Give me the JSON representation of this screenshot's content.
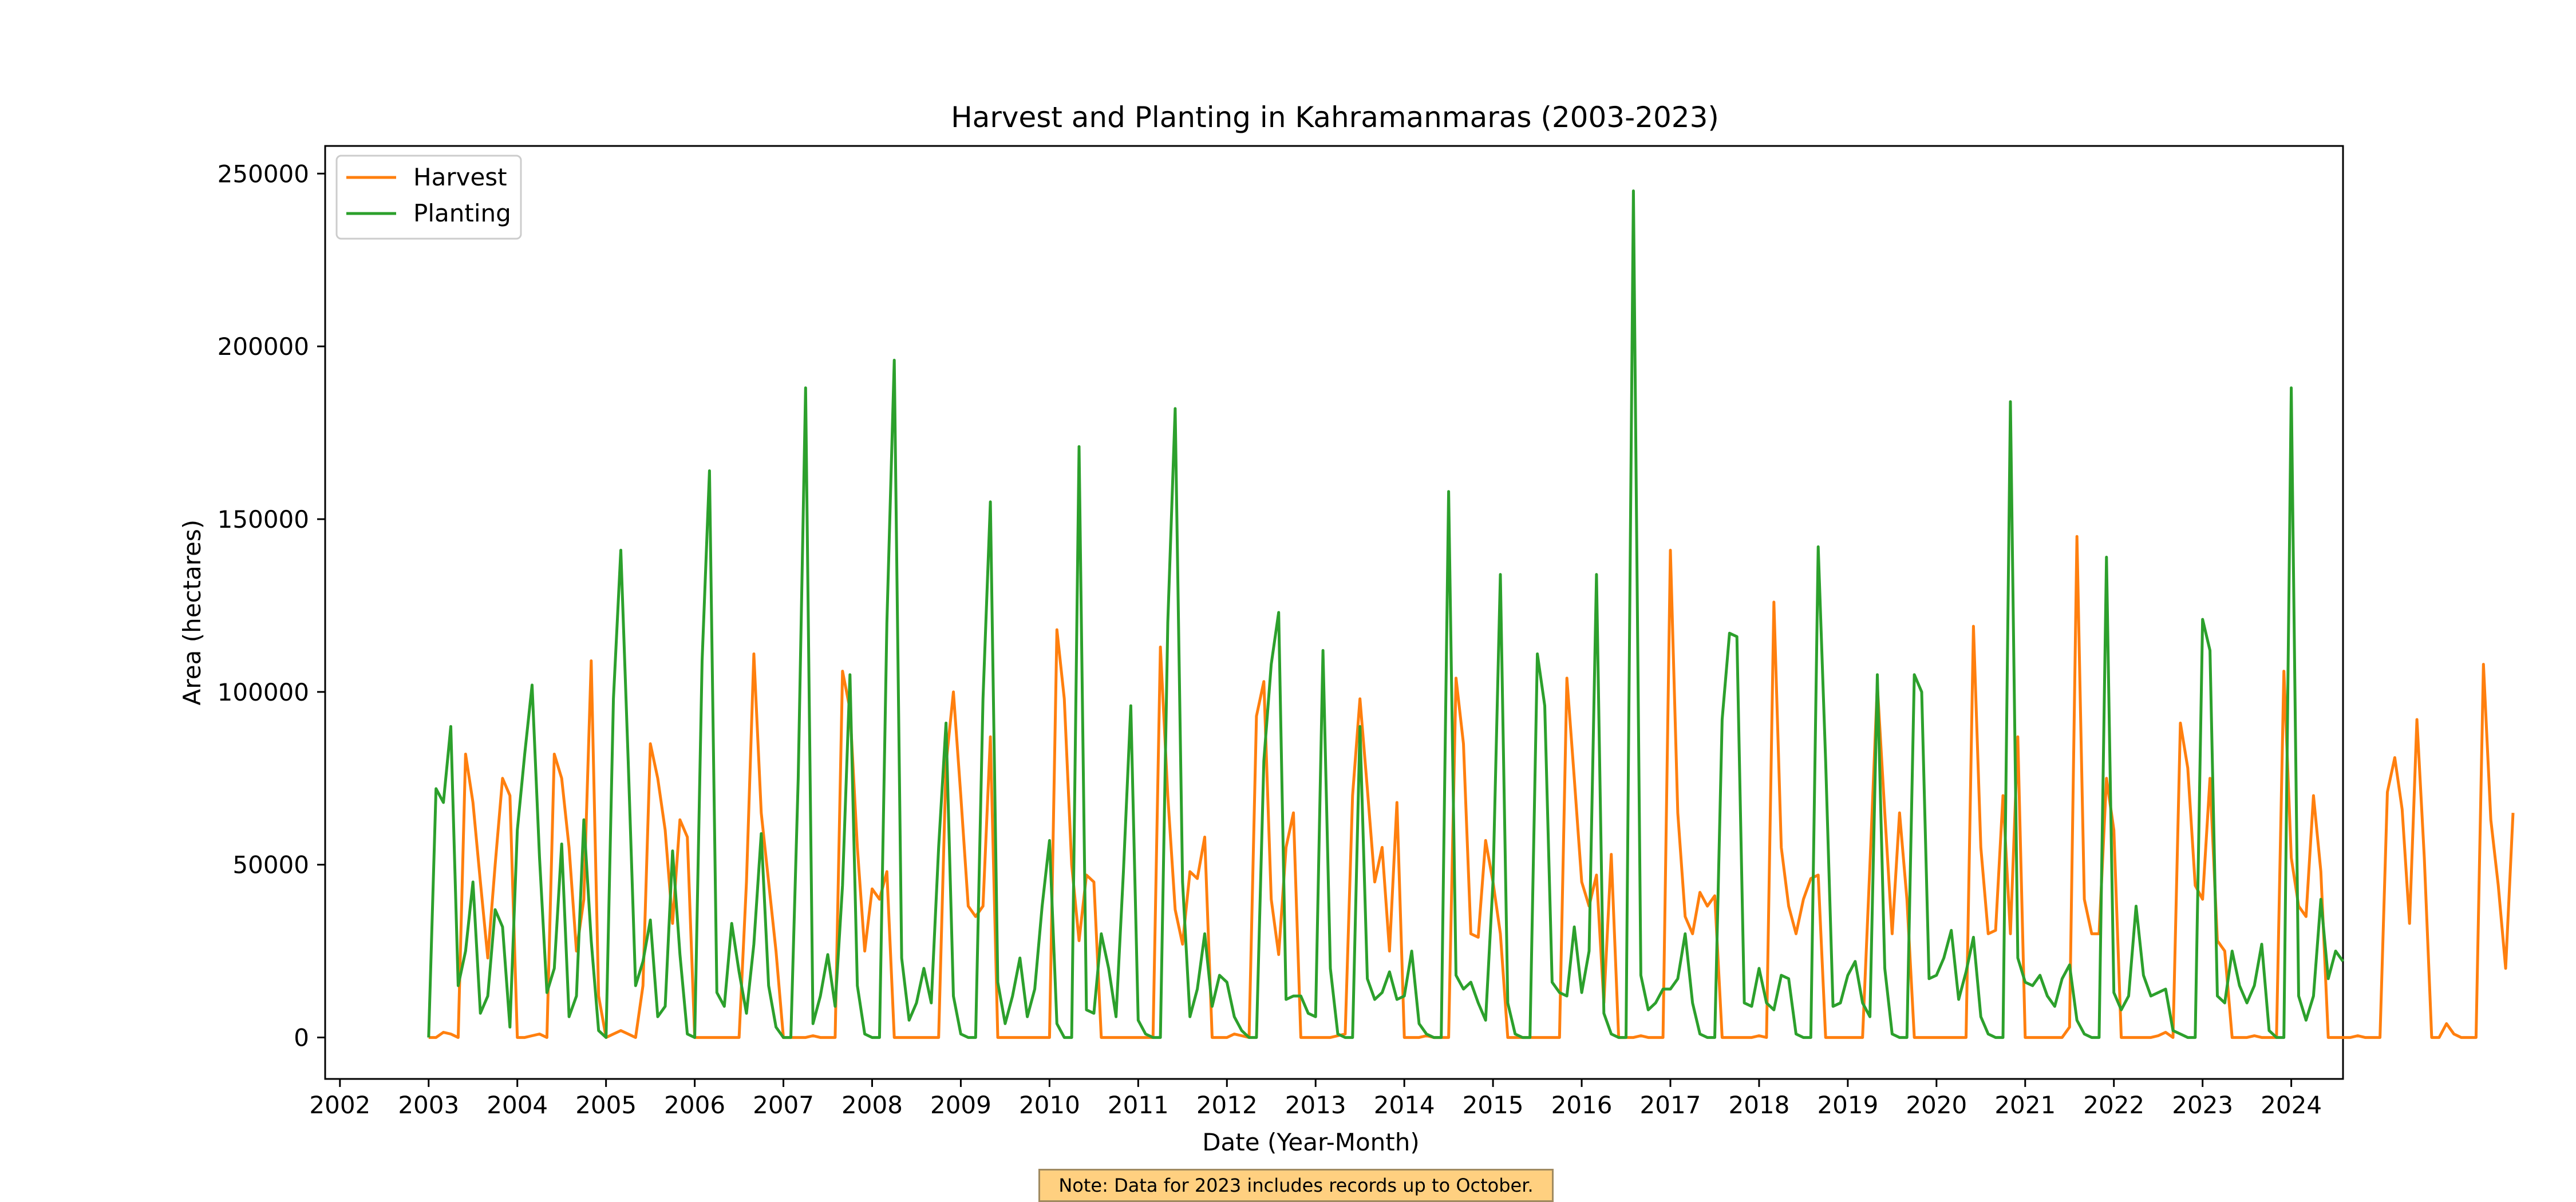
{
  "chart_data": {
    "type": "line",
    "title": "Harvest and Planting in Kahramanmaras (2003-2023)",
    "xlabel": "Date (Year-Month)",
    "ylabel": "Area (hectares)",
    "x_ticks": [
      "2002",
      "2003",
      "2004",
      "2005",
      "2006",
      "2007",
      "2008",
      "2009",
      "2010",
      "2011",
      "2012",
      "2013",
      "2014",
      "2015",
      "2016",
      "2017",
      "2018",
      "2019",
      "2020",
      "2021",
      "2022",
      "2023",
      "2024"
    ],
    "y_ticks": [
      "0",
      "50000",
      "100000",
      "150000",
      "200000",
      "250000"
    ],
    "xlim": [
      "2001-11",
      "2024-08"
    ],
    "ylim": [
      -12000,
      258000
    ],
    "grid": false,
    "legend_position": "top-left",
    "series": [
      {
        "name": "Harvest",
        "color": "#ff7f0e",
        "start": "2003-01",
        "values": [
          0,
          0,
          1500,
          1000,
          0,
          82000,
          68000,
          45000,
          23000,
          50000,
          75000,
          70000,
          0,
          0,
          500,
          1000,
          0,
          82000,
          75000,
          55000,
          25000,
          40000,
          109000,
          12000,
          0,
          1000,
          2000,
          1000,
          0,
          15000,
          85000,
          75000,
          60000,
          33000,
          63000,
          58000,
          0,
          0,
          0,
          0,
          0,
          0,
          0,
          45000,
          111000,
          65000,
          45000,
          25000,
          0,
          0,
          0,
          0,
          500,
          0,
          0,
          0,
          106000,
          95000,
          55000,
          25000,
          43000,
          40000,
          48000,
          0,
          0,
          0,
          0,
          0,
          0,
          0,
          79000,
          100000,
          70000,
          38000,
          35000,
          38000,
          87000,
          0,
          0,
          0,
          0,
          0,
          0,
          0,
          0,
          118000,
          98000,
          50000,
          28000,
          47000,
          45000,
          0,
          0,
          0,
          0,
          0,
          0,
          0,
          0,
          113000,
          70000,
          37000,
          27000,
          48000,
          46000,
          58000,
          0,
          0,
          0,
          1000,
          500,
          0,
          93000,
          103000,
          40000,
          24000,
          55000,
          65000,
          0,
          0,
          0,
          0,
          0,
          500,
          1000,
          70000,
          98000,
          72000,
          45000,
          55000,
          25000,
          68000,
          0,
          0,
          0,
          500,
          0,
          0,
          0,
          104000,
          85000,
          30000,
          29000,
          57000,
          45000,
          30000,
          0,
          0,
          0,
          0,
          0,
          0,
          0,
          0,
          104000,
          75000,
          45000,
          38000,
          47000,
          10000,
          53000,
          0,
          0,
          0,
          500,
          0,
          0,
          0,
          141000,
          65000,
          35000,
          30000,
          42000,
          38000,
          41000,
          0,
          0,
          0,
          0,
          0,
          500,
          0,
          126000,
          55000,
          38000,
          30000,
          40000,
          46000,
          47000,
          0,
          0,
          0,
          0,
          0,
          0,
          50000,
          102000,
          65000,
          30000,
          65000,
          40000,
          0,
          0,
          0,
          0,
          0,
          0,
          0,
          0,
          119000,
          55000,
          30000,
          31000,
          70000,
          30000,
          87000,
          0,
          0,
          0,
          0,
          0,
          0,
          3000,
          145000,
          40000,
          30000,
          30000,
          75000,
          60000,
          0,
          0,
          0,
          0,
          0,
          500,
          1500,
          0,
          91000,
          78000,
          44000,
          40000,
          75000,
          28000,
          25000,
          0,
          0,
          0,
          500,
          0,
          0,
          0,
          106000,
          52000,
          38000,
          35000,
          70000,
          48000,
          0,
          0,
          0,
          0,
          500,
          0,
          0,
          0,
          71000,
          81000,
          66000,
          33000,
          92000,
          52000,
          0,
          0,
          4000,
          1000,
          0,
          0,
          0,
          108000,
          63000,
          44000,
          20000,
          65000
        ]
      },
      {
        "name": "Planting",
        "color": "#2ca02c",
        "start": "2003-01",
        "values": [
          0,
          72000,
          68000,
          90000,
          15000,
          25000,
          45000,
          7000,
          12000,
          37000,
          32000,
          3000,
          60000,
          82000,
          102000,
          52000,
          13000,
          20000,
          56000,
          6000,
          12000,
          63000,
          28000,
          2000,
          0,
          98000,
          141000,
          80000,
          15000,
          22000,
          34000,
          6000,
          9000,
          54000,
          24000,
          1000,
          0,
          109000,
          164000,
          13000,
          9000,
          33000,
          19000,
          7000,
          27000,
          59000,
          15000,
          3000,
          0,
          0,
          75000,
          188000,
          4000,
          12000,
          24000,
          9000,
          44000,
          105000,
          15000,
          1000,
          0,
          0,
          120000,
          196000,
          23000,
          5000,
          10000,
          20000,
          10000,
          55000,
          91000,
          12000,
          1000,
          0,
          0,
          98000,
          155000,
          16000,
          4000,
          12000,
          23000,
          6000,
          14000,
          38000,
          57000,
          4000,
          0,
          0,
          171000,
          8000,
          7000,
          30000,
          20000,
          6000,
          48000,
          96000,
          5000,
          1000,
          0,
          0,
          120000,
          182000,
          45000,
          6000,
          14000,
          30000,
          9000,
          18000,
          16000,
          6000,
          2000,
          0,
          0,
          80000,
          108000,
          123000,
          11000,
          12000,
          12000,
          7000,
          6000,
          112000,
          20000,
          1000,
          0,
          0,
          90000,
          17000,
          11000,
          13000,
          19000,
          11000,
          12000,
          25000,
          4000,
          1000,
          0,
          0,
          158000,
          18000,
          14000,
          16000,
          10000,
          5000,
          45000,
          134000,
          10000,
          1000,
          0,
          0,
          111000,
          96000,
          16000,
          13000,
          12000,
          32000,
          13000,
          25000,
          134000,
          7000,
          1000,
          0,
          0,
          245000,
          18000,
          8000,
          10000,
          14000,
          14000,
          17000,
          30000,
          10000,
          1000,
          0,
          0,
          92000,
          117000,
          116000,
          10000,
          9000,
          20000,
          10000,
          8000,
          18000,
          17000,
          1000,
          0,
          0,
          142000,
          80000,
          9000,
          10000,
          18000,
          22000,
          10000,
          6000,
          105000,
          20000,
          1000,
          0,
          0,
          105000,
          100000,
          17000,
          18000,
          23000,
          31000,
          11000,
          19000,
          29000,
          6000,
          1000,
          0,
          0,
          184000,
          23000,
          16000,
          15000,
          18000,
          12000,
          9000,
          17000,
          21000,
          5000,
          1000,
          0,
          0,
          139000,
          13000,
          8000,
          12000,
          38000,
          18000,
          12000,
          13000,
          14000,
          2000,
          1000,
          0,
          0,
          121000,
          112000,
          12000,
          10000,
          25000,
          15000,
          10000,
          15000,
          27000,
          2000,
          0,
          0,
          188000,
          12000,
          5000,
          12000,
          40000,
          17000,
          25000,
          22000
        ]
      }
    ],
    "note": "Note: Data for 2023 includes records up to October."
  }
}
